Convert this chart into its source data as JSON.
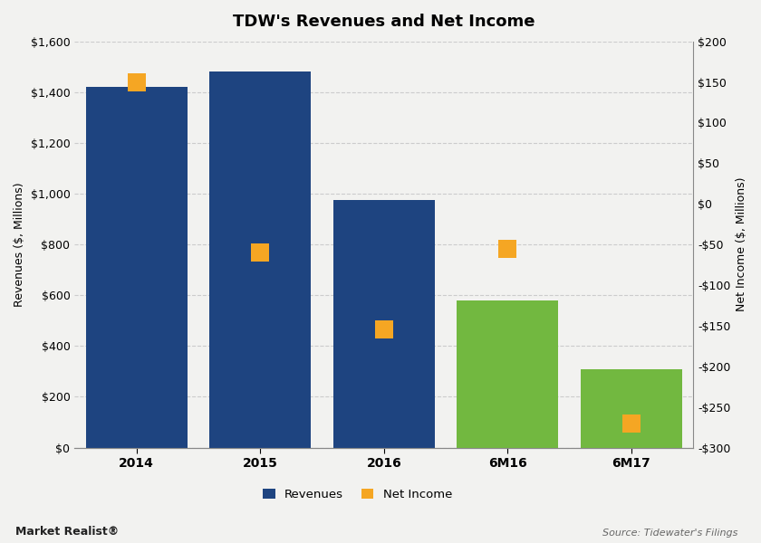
{
  "title": "TDW's Revenues and Net Income",
  "categories": [
    "2014",
    "2015",
    "2016",
    "6M16",
    "6M17"
  ],
  "revenues": [
    1420,
    1480,
    975,
    580,
    310
  ],
  "net_income": [
    150,
    -60,
    -155,
    -55,
    -270
  ],
  "bar_colors": [
    "#1e4480",
    "#1e4480",
    "#1e4480",
    "#72b840",
    "#72b840"
  ],
  "marker_color": "#f5a623",
  "left_ylabel": "Revenues ($, Millions)",
  "right_ylabel": "Net Income ($, Millions)",
  "left_ylim": [
    0,
    1600
  ],
  "left_yticks": [
    0,
    200,
    400,
    600,
    800,
    1000,
    1200,
    1400,
    1600
  ],
  "left_yticklabels": [
    "$0",
    "$200",
    "$400",
    "$600",
    "$800",
    "$1,000",
    "$1,200",
    "$1,400",
    "$1,600"
  ],
  "right_ylim": [
    -300,
    200
  ],
  "right_yticks": [
    -300,
    -250,
    -200,
    -150,
    -100,
    -50,
    0,
    50,
    100,
    150,
    200
  ],
  "right_yticklabels": [
    "-$300",
    "-$250",
    "-$200",
    "-$150",
    "-$100",
    "-$50",
    "$0",
    "$50",
    "$100",
    "$150",
    "$200"
  ],
  "legend_labels": [
    "Revenues",
    "Net Income"
  ],
  "legend_bar_color": "#1e4480",
  "legend_marker_color": "#f5a623",
  "source_text": "Source: Tidewater's Filings",
  "watermark_text": "Market Realist",
  "bg_color": "#f2f2f0",
  "plot_bg_color": "#f2f2f0",
  "grid_color": "#cccccc",
  "title_fontsize": 13,
  "axis_label_fontsize": 9,
  "tick_fontsize": 9,
  "bar_width": 0.82
}
